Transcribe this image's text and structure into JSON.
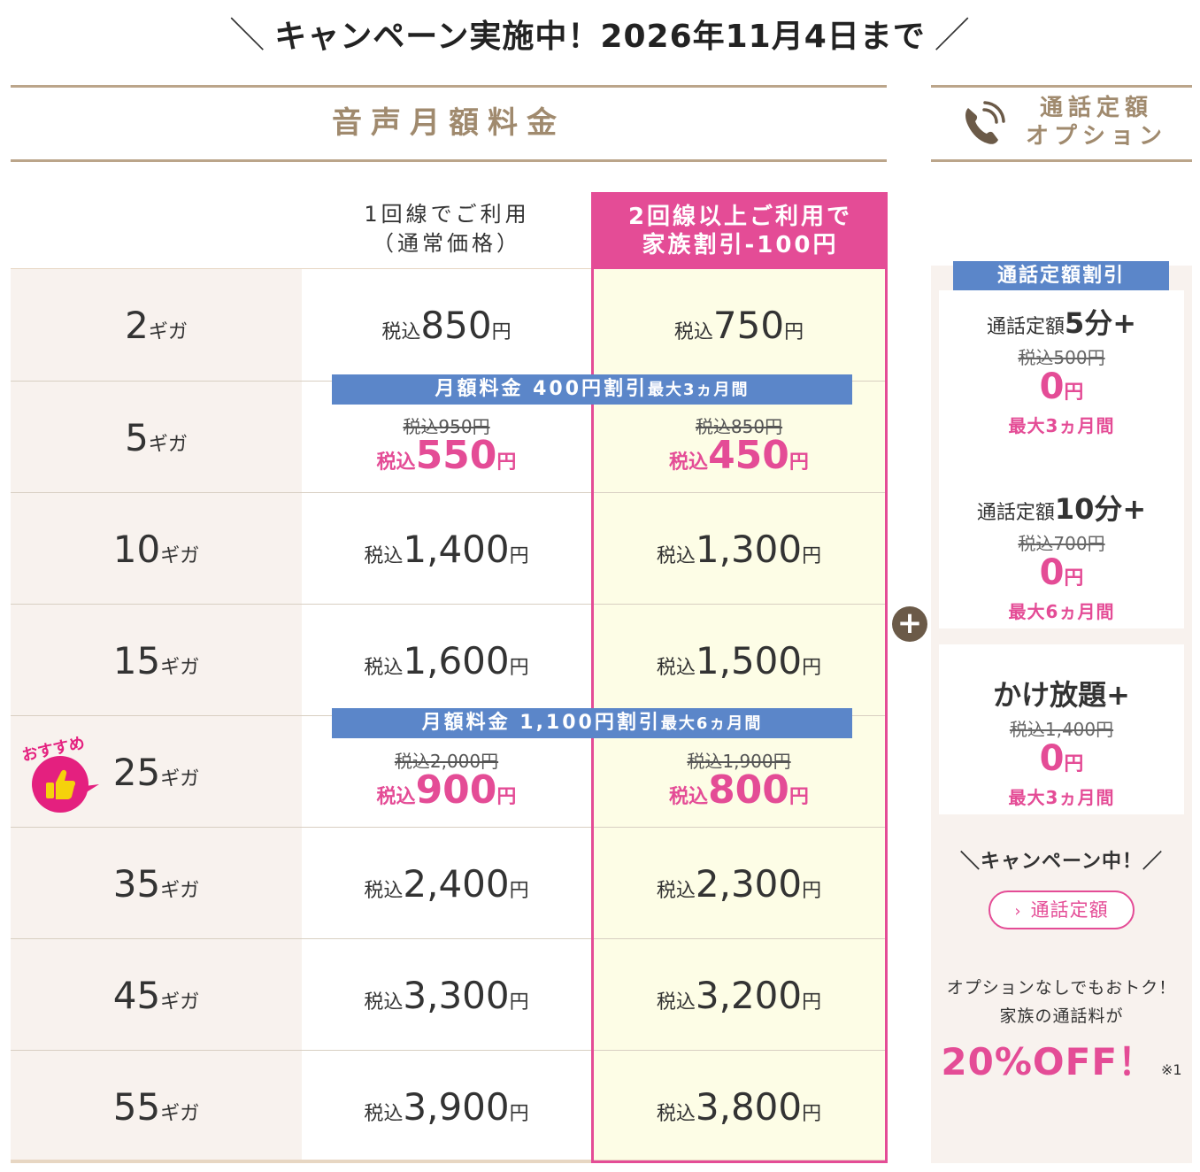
{
  "headline": {
    "text": "キャンペーン実施中！2026年11月4日まで",
    "slash_left": "＼",
    "slash_right": "／"
  },
  "section": {
    "title": "音声月額料金"
  },
  "option_header": {
    "line1": "通話定額",
    "line2": "オプション",
    "icon": "phone-icon"
  },
  "columns": {
    "normal": {
      "line1": "1回線でご利用",
      "line2": "（通常価格）"
    },
    "family": {
      "line1": "2回線以上ご利用で",
      "line2": "家族割引-100円"
    }
  },
  "labels": {
    "tax": "税込",
    "yen": "円",
    "unit": "ギガ"
  },
  "plans": [
    {
      "size": "2",
      "normal": "850",
      "family": "750"
    },
    {
      "size": "5",
      "normal_old": "税込950円",
      "normal": "550",
      "family_old": "税込850円",
      "family": "450",
      "discount": true
    },
    {
      "size": "10",
      "normal": "1,400",
      "family": "1,300"
    },
    {
      "size": "15",
      "normal": "1,600",
      "family": "1,500"
    },
    {
      "size": "25",
      "normal_old": "税込2,000円",
      "normal": "900",
      "family_old": "税込1,900円",
      "family": "800",
      "discount": true,
      "recommended": true
    },
    {
      "size": "35",
      "normal": "2,400",
      "family": "2,300"
    },
    {
      "size": "45",
      "normal": "3,300",
      "family": "3,200"
    },
    {
      "size": "55",
      "normal": "3,900",
      "family": "3,800"
    }
  ],
  "banners": [
    {
      "main": "月額料金 400円割引",
      "small": "最大3ヵ月間"
    },
    {
      "main": "月額料金 1,100円割引",
      "small": "最大6ヵ月間"
    }
  ],
  "badge": {
    "text": "おすすめ",
    "icon": "thumbs-up-icon"
  },
  "plus_icon": "plus-circle-icon",
  "options": {
    "discount_title": "通話定額割引",
    "cards": [
      {
        "prefix": "通話定額",
        "bold": "5分+",
        "old": "税込500円",
        "price": "0",
        "yen": "円",
        "period": "最大3ヵ月間"
      },
      {
        "prefix": "通話定額",
        "bold": "10分+",
        "old": "税込700円",
        "price": "0",
        "yen": "円",
        "period": "最大6ヵ月間"
      },
      {
        "prefix": "",
        "bold": "かけ放題+",
        "old": "税込1,400円",
        "price": "0",
        "yen": "円",
        "period": "最大3ヵ月間"
      }
    ],
    "campaign_now": "＼キャンペーン中！／",
    "pill": {
      "label": "通話定額",
      "icon": "chevron-right-icon"
    },
    "note_line1": "オプションなしでもおトク！",
    "note_line2": "家族の通話料が",
    "off_text": "20%OFF！",
    "off_mark": "※1"
  },
  "colors": {
    "pink": "#e44c96",
    "blue": "#5b86c9",
    "beige": "#bba58a",
    "family_bg": "#fdfde6",
    "size_bg": "#f8f2ee"
  }
}
